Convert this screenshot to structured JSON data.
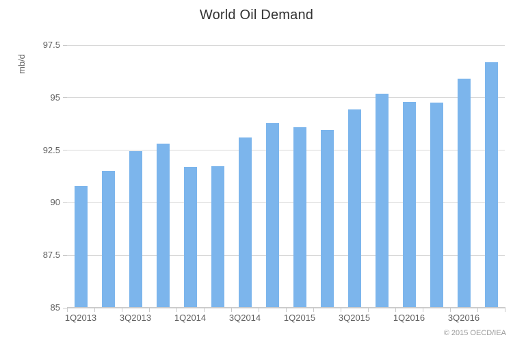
{
  "header": {
    "title": "World Oil Demand"
  },
  "credit_label": "© 2015 OECD/IEA",
  "chart_data": {
    "type": "bar",
    "title": "World Oil Demand",
    "xlabel": "",
    "ylabel": "mb/d",
    "categories": [
      "1Q2013",
      "2Q2013",
      "3Q2013",
      "4Q2013",
      "1Q2014",
      "2Q2014",
      "3Q2014",
      "4Q2014",
      "1Q2015",
      "2Q2015",
      "3Q2015",
      "4Q2015",
      "1Q2016",
      "2Q2016",
      "3Q2016",
      "4Q2016"
    ],
    "values": [
      90.8,
      91.5,
      92.45,
      92.8,
      91.7,
      91.75,
      93.1,
      93.8,
      93.6,
      93.45,
      94.45,
      95.2,
      94.8,
      94.75,
      95.9,
      96.7
    ],
    "x_tick_labels": [
      "1Q2013",
      "3Q2013",
      "1Q2014",
      "3Q2014",
      "1Q2015",
      "3Q2015",
      "1Q2016",
      "3Q2016"
    ],
    "y_ticks": [
      85,
      87.5,
      90,
      92.5,
      95,
      97.5
    ],
    "ylim": [
      85,
      97.5
    ],
    "grid": true,
    "legend": false,
    "colors": {
      "bar": "#7cb5ec",
      "grid": "#d8d8d8",
      "axis_line": "#c9c9c9",
      "tick": "#c9c9c9",
      "tick_label": "#606060",
      "title": "#333333",
      "axis_title": "#666666",
      "credit": "#999999"
    }
  }
}
